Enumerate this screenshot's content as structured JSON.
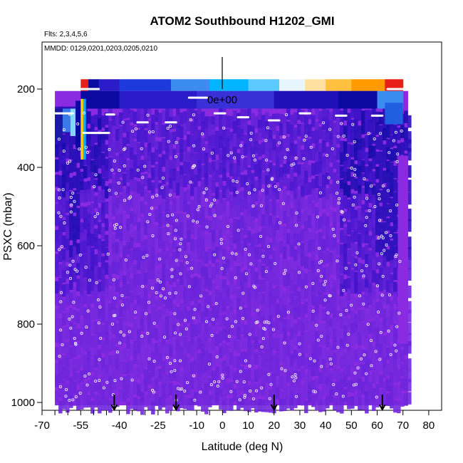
{
  "chart_data": {
    "type": "heatmap",
    "title": "ATOM2 Southbound H1202_GMI",
    "subtitle_flights": "Flts: 2,3,4,5,6",
    "subtitle_dates": "MMDD: 0129,0201,0203,0205,0210",
    "xlabel": "Latitude (deg N)",
    "ylabel": "PSXC (mbar)",
    "xlim": [
      -70,
      85
    ],
    "ylim": [
      1020,
      80
    ],
    "x_ticks": [
      -70,
      -55,
      -40,
      -25,
      -10,
      0,
      10,
      20,
      30,
      40,
      50,
      60,
      70,
      80
    ],
    "x_tick_labels": [
      "-70",
      "-55",
      "-40",
      "-25",
      "-10",
      "0",
      "10",
      "20",
      "30",
      "40",
      "50",
      "60",
      "70",
      "80"
    ],
    "x_minor_ticks": [
      -65,
      -60,
      -50,
      -45,
      -35,
      -30,
      -20,
      -15,
      -5
    ],
    "y_ticks": [
      200,
      400,
      600,
      800,
      1000
    ],
    "y_tick_labels": [
      "200",
      "400",
      "600",
      "800",
      "1000"
    ],
    "colorbar_annotation": "0e+00",
    "flight_arrow_latitudes": [
      -42,
      -18,
      20,
      62
    ],
    "field_extent": {
      "lat_min": -65,
      "lat_max": 72,
      "p_bottom": 1000
    },
    "description_values": {
      "background_value": 0.0,
      "stratosphere_high_band_lat": [
        -55,
        70
      ],
      "stratosphere_high_band_pressure": [
        175,
        205
      ]
    }
  },
  "colors": {
    "field_background": "#8a2be2",
    "low_purple": "#7b2be0",
    "mid_blue": "#3a12c8",
    "dark_blue": "#0a0aa0",
    "sky": "#00b4ff",
    "light": "#e6f5ff",
    "orange": "#ff9a00",
    "red": "#e8201a",
    "marker": "#ffffff",
    "axis": "#000000"
  }
}
